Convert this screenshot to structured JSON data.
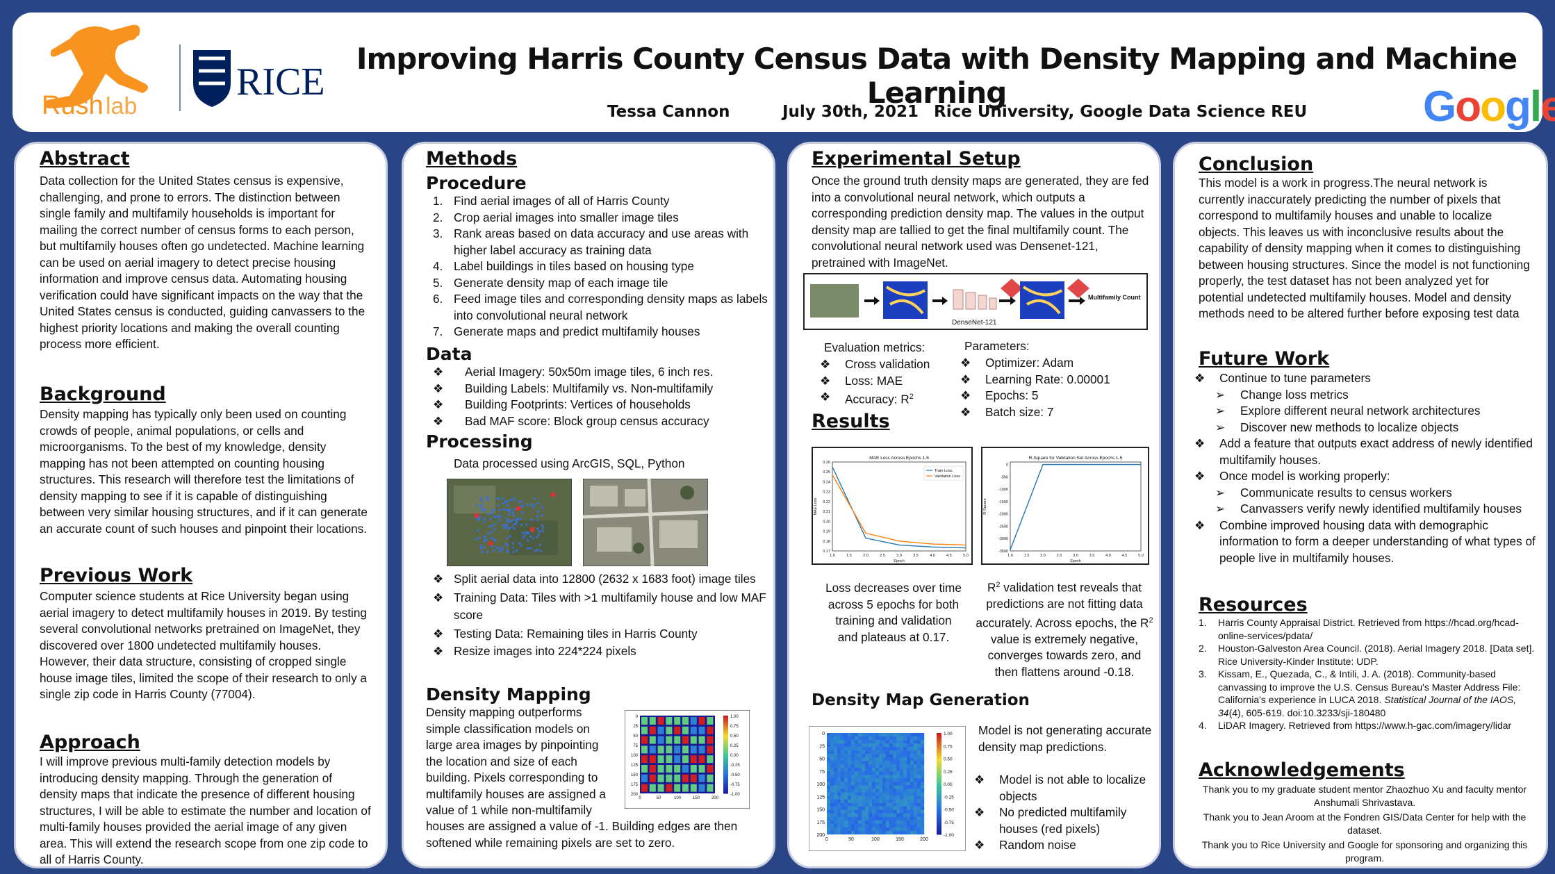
{
  "header": {
    "title": "Improving Harris County Census Data with Density Mapping and Machine Learning",
    "author": "Tessa Cannon",
    "date": "July 30th, 2021",
    "affiliation": "Rice University, Google Data Science REU",
    "logo_rushlab": {
      "a": "Rush",
      "b": "lab"
    },
    "logo_rice": "RICE",
    "logo_google": [
      "G",
      "o",
      "o",
      "g",
      "l",
      "e"
    ],
    "colors": {
      "rush_orange": "#f7931e",
      "rice_blue": "#00205b",
      "panel_bg": "#2a4585"
    }
  },
  "abstract": {
    "heading": "Abstract",
    "text": "Data collection for the United States census is expensive, challenging, and prone to errors. The distinction between single family and multifamily households is important for mailing the correct number of census forms to each person, but multifamily houses often go undetected. Machine learning can be used on aerial imagery to detect precise housing information and improve census data. Automating housing verification could have significant impacts on the way that the United States census is conducted, guiding canvassers to the highest priority locations and making the overall counting process more efficient."
  },
  "background": {
    "heading": "Background",
    "text": "Density mapping has typically only been used on counting crowds of people, animal populations, or cells and microorganisms. To the best of my knowledge, density mapping has not been attempted on counting housing structures. This research will therefore test the limitations of density mapping to see if it is capable of distinguishing between very similar housing structures, and if it can generate an accurate count of such houses and pinpoint their locations."
  },
  "previous_work": {
    "heading": "Previous Work",
    "text": "Computer science students at Rice University began using aerial imagery to detect multifamily houses in 2019. By testing several convolutional networks pretrained on ImageNet, they discovered over 1800 undetected multifamily houses. However, their data structure, consisting of cropped single house image tiles, limited the scope of their research to only a single zip code in Harris County (77004)."
  },
  "approach": {
    "heading": "Approach",
    "text": "I will improve previous multi-family detection models by introducing density mapping. Through the generation of density maps that indicate the presence of different housing structures, I will be able to estimate the number and location of multi-family houses provided the aerial image of any given area. This will extend the research scope from one zip code to all of Harris County."
  },
  "methods": {
    "heading": "Methods",
    "procedure_heading": "Procedure",
    "procedure": [
      {
        "n": "1.",
        "text": "Find aerial images of all of Harris County"
      },
      {
        "n": "2.",
        "text": "Crop aerial images into smaller image tiles"
      },
      {
        "n": "3.",
        "text": "Rank areas based on data accuracy and use areas with higher label accuracy as training data"
      },
      {
        "n": "4.",
        "text": "Label buildings in tiles based on housing type"
      },
      {
        "n": "5.",
        "text": "Generate density map of each image tile"
      },
      {
        "n": "6.",
        "text": "Feed image tiles and corresponding density maps as labels into convolutional neural network"
      },
      {
        "n": "7.",
        "text": "Generate maps and predict multifamily houses"
      }
    ],
    "data_heading": "Data",
    "data": [
      "Aerial Imagery: 50x50m image tiles, 6 inch res.",
      "Building Labels: Multifamily vs. Non-multifamily",
      "Building Footprints: Vertices of households",
      "Bad MAF score: Block group census accuracy"
    ],
    "processing_heading": "Processing",
    "processing_intro": "Data processed using ArcGIS, SQL, Python",
    "processing": [
      "Split aerial data into 12800 (2632 x 1683 foot) image tiles",
      "Training Data: Tiles with >1 multifamily house and low MAF score",
      "Testing Data: Remaining tiles in Harris County",
      "Resize images into 224*224 pixels"
    ],
    "density_heading": "Density Mapping",
    "density_text_a": "Density mapping outperforms simple classification models on large area images by pinpointing the location and size of each building. Pixels corresponding to multifamily houses are assigned a value of 1 while non-multifamily",
    "density_text_b": "houses are assigned a value of -1. Building edges are then softened while remaining pixels are set to zero.",
    "colorbar_ticks": [
      "1.00",
      "0.75",
      "0.50",
      "0.25",
      "0.00",
      "-0.25",
      "-0.50",
      "-0.75",
      "-1.00"
    ],
    "map_yticks": [
      "0",
      "25",
      "50",
      "75",
      "100",
      "125",
      "150",
      "175",
      "200"
    ],
    "map_xticks": [
      "0",
      "50",
      "100",
      "150",
      "200"
    ]
  },
  "experimental": {
    "heading": "Experimental Setup",
    "text": "Once the ground truth density maps are generated, they are fed into a convolutional neural network, which outputs a corresponding prediction density map. The values in the output density map are tallied to get the final multifamily count. The convolutional neural network used was Densenet-121, pretrained with ImageNet.",
    "pipeline_label": "DenseNet-121",
    "pipeline_out": "Multifamily Count",
    "metrics_heading": "Evaluation metrics:",
    "metrics": [
      "Cross validation",
      "Loss: MAE",
      "Accuracy: R"
    ],
    "params_heading": "Parameters:",
    "params": [
      "Optimizer: Adam",
      "Learning Rate: 0.00001",
      "Epochs: 5",
      "Batch size: 7"
    ]
  },
  "results": {
    "heading": "Results",
    "loss_caption": "Loss decreases over time across 5 epochs for both training and validation and plateaus at 0.17.",
    "r2_caption_a": "R",
    "r2_caption_b": " validation test reveals that predictions are not fitting data accurately. Across epochs, the R",
    "r2_caption_c": " value is extremely negative, converges towards zero, and then flattens around -0.18."
  },
  "density_gen": {
    "heading": "Density Map Generation",
    "text": "Model is not generating accurate density map predictions.",
    "bullets": [
      "Model is not able to localize objects",
      "No predicted multifamily houses (red pixels)",
      "Random noise"
    ]
  },
  "conclusion": {
    "heading": "Conclusion",
    "text": "This model is a work in progress.The neural network is currently inaccurately predicting the number of pixels that correspond to multifamily houses and unable to localize objects. This leaves us with inconclusive results about the capability of density mapping when it comes to distinguishing between housing structures. Since the model is not functioning properly, the test dataset has not been analyzed yet for potential undetected multifamily houses. Model and density methods need to be altered further before exposing test data"
  },
  "future_work": {
    "heading": "Future Work",
    "items": [
      {
        "t": "Continue to tune parameters",
        "sub": false
      },
      {
        "t": "Change loss metrics",
        "sub": true
      },
      {
        "t": "Explore different neural network architectures",
        "sub": true
      },
      {
        "t": "Discover new methods to localize objects",
        "sub": true
      },
      {
        "t": "Add a feature that outputs exact address of newly identified multifamily houses.",
        "sub": false
      },
      {
        "t": "Once model is working properly:",
        "sub": false
      },
      {
        "t": "Communicate results to census workers",
        "sub": true
      },
      {
        "t": "Canvassers verify newly identified multifamily houses",
        "sub": true
      },
      {
        "t": "Combine improved housing data with demographic information to form a deeper understanding of what types of people live in multifamily houses.",
        "sub": false
      }
    ]
  },
  "resources": {
    "heading": "Resources",
    "items": [
      {
        "n": "1.",
        "a": "Harris County Appraisal District. Retrieved from https://hcad.org/hcad-online-services/pdata/",
        "i": "",
        "b": ""
      },
      {
        "n": "2.",
        "a": "Houston-Galveston Area Council. (2018). Aerial Imagery 2018. [Data set]. Rice University-Kinder Institute: UDP.",
        "i": "",
        "b": ""
      },
      {
        "n": "3.",
        "a": "Kissam, E., Quezada, C., & Intili, J. A. (2018). Community-based canvassing to improve the U.S. Census Bureau's Master Address File: California's experience in LUCA 2018. ",
        "i": "Statistical Journal of the IAOS, 34",
        "b": "(4), 605-619. doi:10.3233/sji-180480"
      },
      {
        "n": "4.",
        "a": "LiDAR Imagery. Retrieved from https://www.h-gac.com/imagery/lidar",
        "i": "",
        "b": ""
      }
    ]
  },
  "acknowledgements": {
    "heading": "Acknowledgements",
    "lines": [
      "Thank you to my graduate student mentor Zhaozhuo Xu and faculty mentor Anshumali Shrivastava.",
      "Thank you to Jean Aroom at the Fondren GIS/Data Center for help with the dataset.",
      "Thank you to Rice University and Google for sponsoring and organizing this program."
    ]
  },
  "chart_data": [
    {
      "type": "line",
      "title": "MAE Loss Across Epochs 1-5",
      "xlabel": "Epoch",
      "ylabel": "MAE Loss",
      "x": [
        1,
        2,
        3,
        4,
        5
      ],
      "xticks": [
        "1.0",
        "1.5",
        "2.0",
        "2.5",
        "3.0",
        "3.5",
        "4.0",
        "4.5",
        "5.0"
      ],
      "yticks": [
        "0.17",
        "0.18",
        "0.19",
        "0.20",
        "0.21",
        "0.22",
        "0.23",
        "0.24",
        "0.25",
        "0.26"
      ],
      "xlim": [
        1,
        5
      ],
      "ylim": [
        0.17,
        0.26
      ],
      "legend": "top-right",
      "series": [
        {
          "name": "Train Loss",
          "color": "#1f77b4",
          "values": [
            0.255,
            0.183,
            0.176,
            0.174,
            0.173
          ]
        },
        {
          "name": "Validation Loss",
          "color": "#ff7f0e",
          "values": [
            0.247,
            0.188,
            0.18,
            0.177,
            0.176
          ]
        }
      ]
    },
    {
      "type": "line",
      "title": "R-Square for Validation Set Across Epochs 1-5",
      "xlabel": "Epoch",
      "ylabel": "R-Square",
      "x": [
        1,
        2,
        3,
        4,
        5
      ],
      "xticks": [
        "1.0",
        "1.5",
        "2.0",
        "2.5",
        "3.0",
        "3.5",
        "4.0",
        "4.5",
        "5.0"
      ],
      "yticks": [
        "0",
        "-500",
        "-1000",
        "-1500",
        "-2000",
        "-2500",
        "-3000",
        "-3500"
      ],
      "xlim": [
        1,
        5
      ],
      "ylim": [
        -3500,
        100
      ],
      "series": [
        {
          "name": "",
          "color": "#1f77b4",
          "values": [
            -3450,
            -0.5,
            -0.2,
            -0.18,
            -0.18
          ]
        }
      ]
    }
  ]
}
